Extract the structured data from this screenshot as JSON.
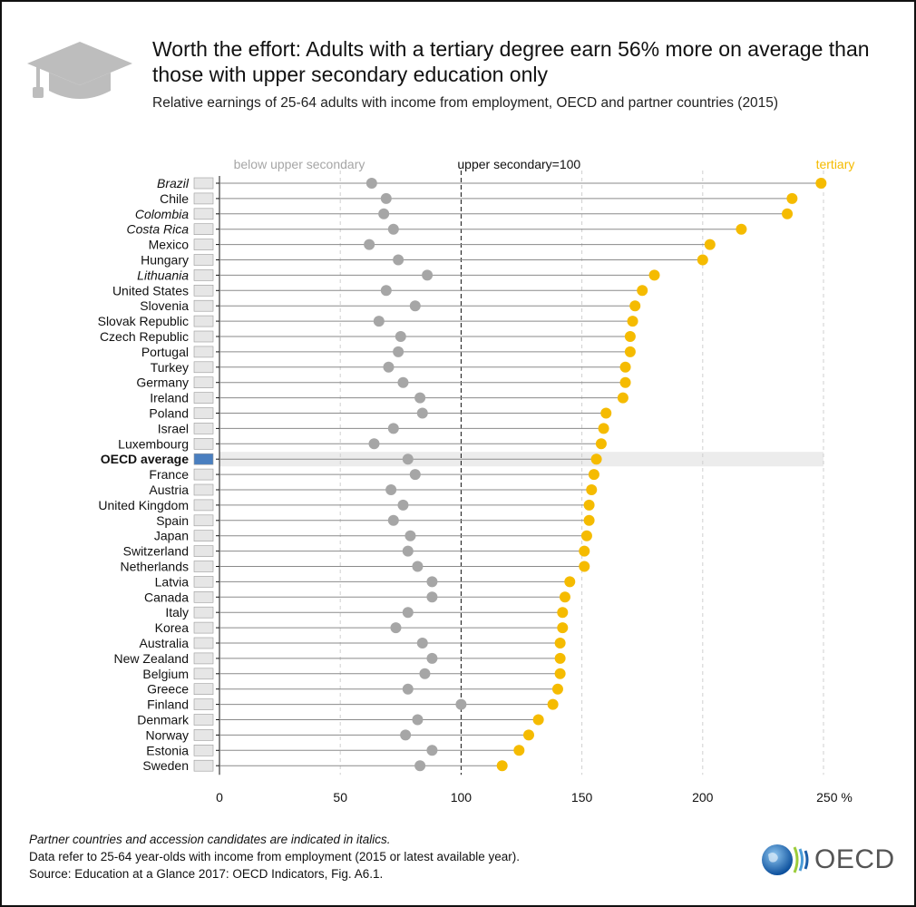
{
  "header": {
    "title": "Worth the effort: Adults with a tertiary degree earn 56% more on average than those with upper secondary education only",
    "subtitle": "Relative earnings of 25-64 adults with income from employment, OECD and partner countries (2015)",
    "icon": "graduation-cap-icon"
  },
  "chart_data": {
    "type": "scatter",
    "subtype": "dot-range",
    "title": "",
    "xlim": [
      0,
      250
    ],
    "x_ticks": [
      "0",
      "50",
      "100",
      "150",
      "200",
      "250 %"
    ],
    "grid": "vertical dashed at 50, 150, 200, 250",
    "reference_line": {
      "value": 100,
      "label": "upper secondary=100"
    },
    "series": [
      {
        "name": "below upper secondary",
        "color": "#a6a6a6"
      },
      {
        "name": "tertiary",
        "color": "#f5bb00"
      }
    ],
    "countries": [
      {
        "name": "Brazil",
        "italic": true,
        "below": 63,
        "tertiary": 249,
        "flag": "brazil-flag-icon"
      },
      {
        "name": "Chile",
        "below": 69,
        "tertiary": 237,
        "flag": "chile-flag-icon"
      },
      {
        "name": "Colombia",
        "italic": true,
        "below": 68,
        "tertiary": 235,
        "flag": "colombia-flag-icon"
      },
      {
        "name": "Costa Rica",
        "italic": true,
        "below": 72,
        "tertiary": 216,
        "flag": "costa-rica-flag-icon"
      },
      {
        "name": "Mexico",
        "below": 62,
        "tertiary": 203,
        "flag": "mexico-flag-icon"
      },
      {
        "name": "Hungary",
        "below": 74,
        "tertiary": 200,
        "flag": "hungary-flag-icon"
      },
      {
        "name": "Lithuania",
        "italic": true,
        "below": 86,
        "tertiary": 180,
        "flag": "lithuania-flag-icon"
      },
      {
        "name": "United States",
        "below": 69,
        "tertiary": 175,
        "flag": "united-states-flag-icon"
      },
      {
        "name": "Slovenia",
        "below": 81,
        "tertiary": 172,
        "flag": "slovenia-flag-icon"
      },
      {
        "name": "Slovak Republic",
        "below": 66,
        "tertiary": 171,
        "flag": "slovak-republic-flag-icon"
      },
      {
        "name": "Czech Republic",
        "below": 75,
        "tertiary": 170,
        "flag": "czech-republic-flag-icon"
      },
      {
        "name": "Portugal",
        "below": 74,
        "tertiary": 170,
        "flag": "portugal-flag-icon"
      },
      {
        "name": "Turkey",
        "below": 70,
        "tertiary": 168,
        "flag": "turkey-flag-icon"
      },
      {
        "name": "Germany",
        "below": 76,
        "tertiary": 168,
        "flag": "germany-flag-icon"
      },
      {
        "name": "Ireland",
        "below": 83,
        "tertiary": 167,
        "flag": "ireland-flag-icon"
      },
      {
        "name": "Poland",
        "below": 84,
        "tertiary": 160,
        "flag": "poland-flag-icon"
      },
      {
        "name": "Israel",
        "below": 72,
        "tertiary": 159,
        "flag": "israel-flag-icon"
      },
      {
        "name": "Luxembourg",
        "below": 64,
        "tertiary": 158,
        "flag": "luxembourg-flag-icon"
      },
      {
        "name": "OECD average",
        "bold": true,
        "highlight": true,
        "below": 78,
        "tertiary": 156,
        "flag": "oecd-globe-icon"
      },
      {
        "name": "France",
        "below": 81,
        "tertiary": 155,
        "flag": "france-flag-icon"
      },
      {
        "name": "Austria",
        "below": 71,
        "tertiary": 154,
        "flag": "austria-flag-icon"
      },
      {
        "name": "United Kingdom",
        "below": 76,
        "tertiary": 153,
        "flag": "united-kingdom-flag-icon"
      },
      {
        "name": "Spain",
        "below": 72,
        "tertiary": 153,
        "flag": "spain-flag-icon"
      },
      {
        "name": "Japan",
        "below": 79,
        "tertiary": 152,
        "flag": "japan-flag-icon"
      },
      {
        "name": "Switzerland",
        "below": 78,
        "tertiary": 151,
        "flag": "switzerland-flag-icon"
      },
      {
        "name": "Netherlands",
        "below": 82,
        "tertiary": 151,
        "flag": "netherlands-flag-icon"
      },
      {
        "name": "Latvia",
        "below": 88,
        "tertiary": 145,
        "flag": "latvia-flag-icon"
      },
      {
        "name": "Canada",
        "below": 88,
        "tertiary": 143,
        "flag": "canada-flag-icon"
      },
      {
        "name": "Italy",
        "below": 78,
        "tertiary": 142,
        "flag": "italy-flag-icon"
      },
      {
        "name": "Korea",
        "below": 73,
        "tertiary": 142,
        "flag": "korea-flag-icon"
      },
      {
        "name": "Australia",
        "below": 84,
        "tertiary": 141,
        "flag": "australia-flag-icon"
      },
      {
        "name": "New Zealand",
        "below": 88,
        "tertiary": 141,
        "flag": "new-zealand-flag-icon"
      },
      {
        "name": "Belgium",
        "below": 85,
        "tertiary": 141,
        "flag": "belgium-flag-icon"
      },
      {
        "name": "Greece",
        "below": 78,
        "tertiary": 140,
        "flag": "greece-flag-icon"
      },
      {
        "name": "Finland",
        "below": 100,
        "tertiary": 138,
        "flag": "finland-flag-icon"
      },
      {
        "name": "Denmark",
        "below": 82,
        "tertiary": 132,
        "flag": "denmark-flag-icon"
      },
      {
        "name": "Norway",
        "below": 77,
        "tertiary": 128,
        "flag": "norway-flag-icon"
      },
      {
        "name": "Estonia",
        "below": 88,
        "tertiary": 124,
        "flag": "estonia-flag-icon"
      },
      {
        "name": "Sweden",
        "below": 83,
        "tertiary": 117,
        "flag": "sweden-flag-icon"
      }
    ]
  },
  "footer": {
    "note_italic": "Partner countries and accession candidates are indicated in italics.",
    "note": "Data refer to 25-64 year-olds with income from employment (2015 or latest available year).",
    "source": "Source: Education at a Glance 2017: OECD Indicators, Fig. A6.1."
  },
  "logo": {
    "text": "OECD",
    "icon": "oecd-logo-icon"
  }
}
